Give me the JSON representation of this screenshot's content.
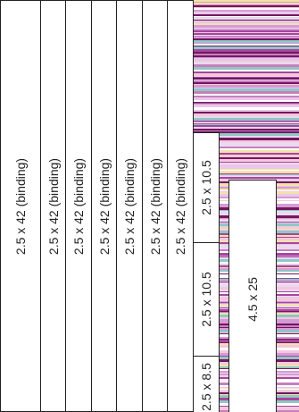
{
  "fabric": {
    "icon": "striped-fabric-texture",
    "stripe_colors": [
      "#ffffff",
      "#e9c7e8",
      "#d59bd6",
      "#a7459e",
      "#73185f",
      "#f2e2a8",
      "#8fc7c4",
      "#f4c8dc",
      "#c87fbf",
      "#ead9ef"
    ]
  },
  "binding_strips": [
    {
      "label": "2.5 x 42 (binding)"
    },
    {
      "label": "2.5 x 42 (binding)"
    },
    {
      "label": "2.5 x 42 (binding)"
    },
    {
      "label": "2.5 x 42 (binding)"
    },
    {
      "label": "2.5 x 42 (binding)"
    },
    {
      "label": "2.5 x 42 (binding)"
    },
    {
      "label": "2.5 x 42 (binding)"
    }
  ],
  "pieces": [
    {
      "label": "2.5 x 10.5"
    },
    {
      "label": "2.5 x 10.5"
    },
    {
      "label": "2.5 x 8.5"
    },
    {
      "label": "4.5 x 25"
    }
  ]
}
